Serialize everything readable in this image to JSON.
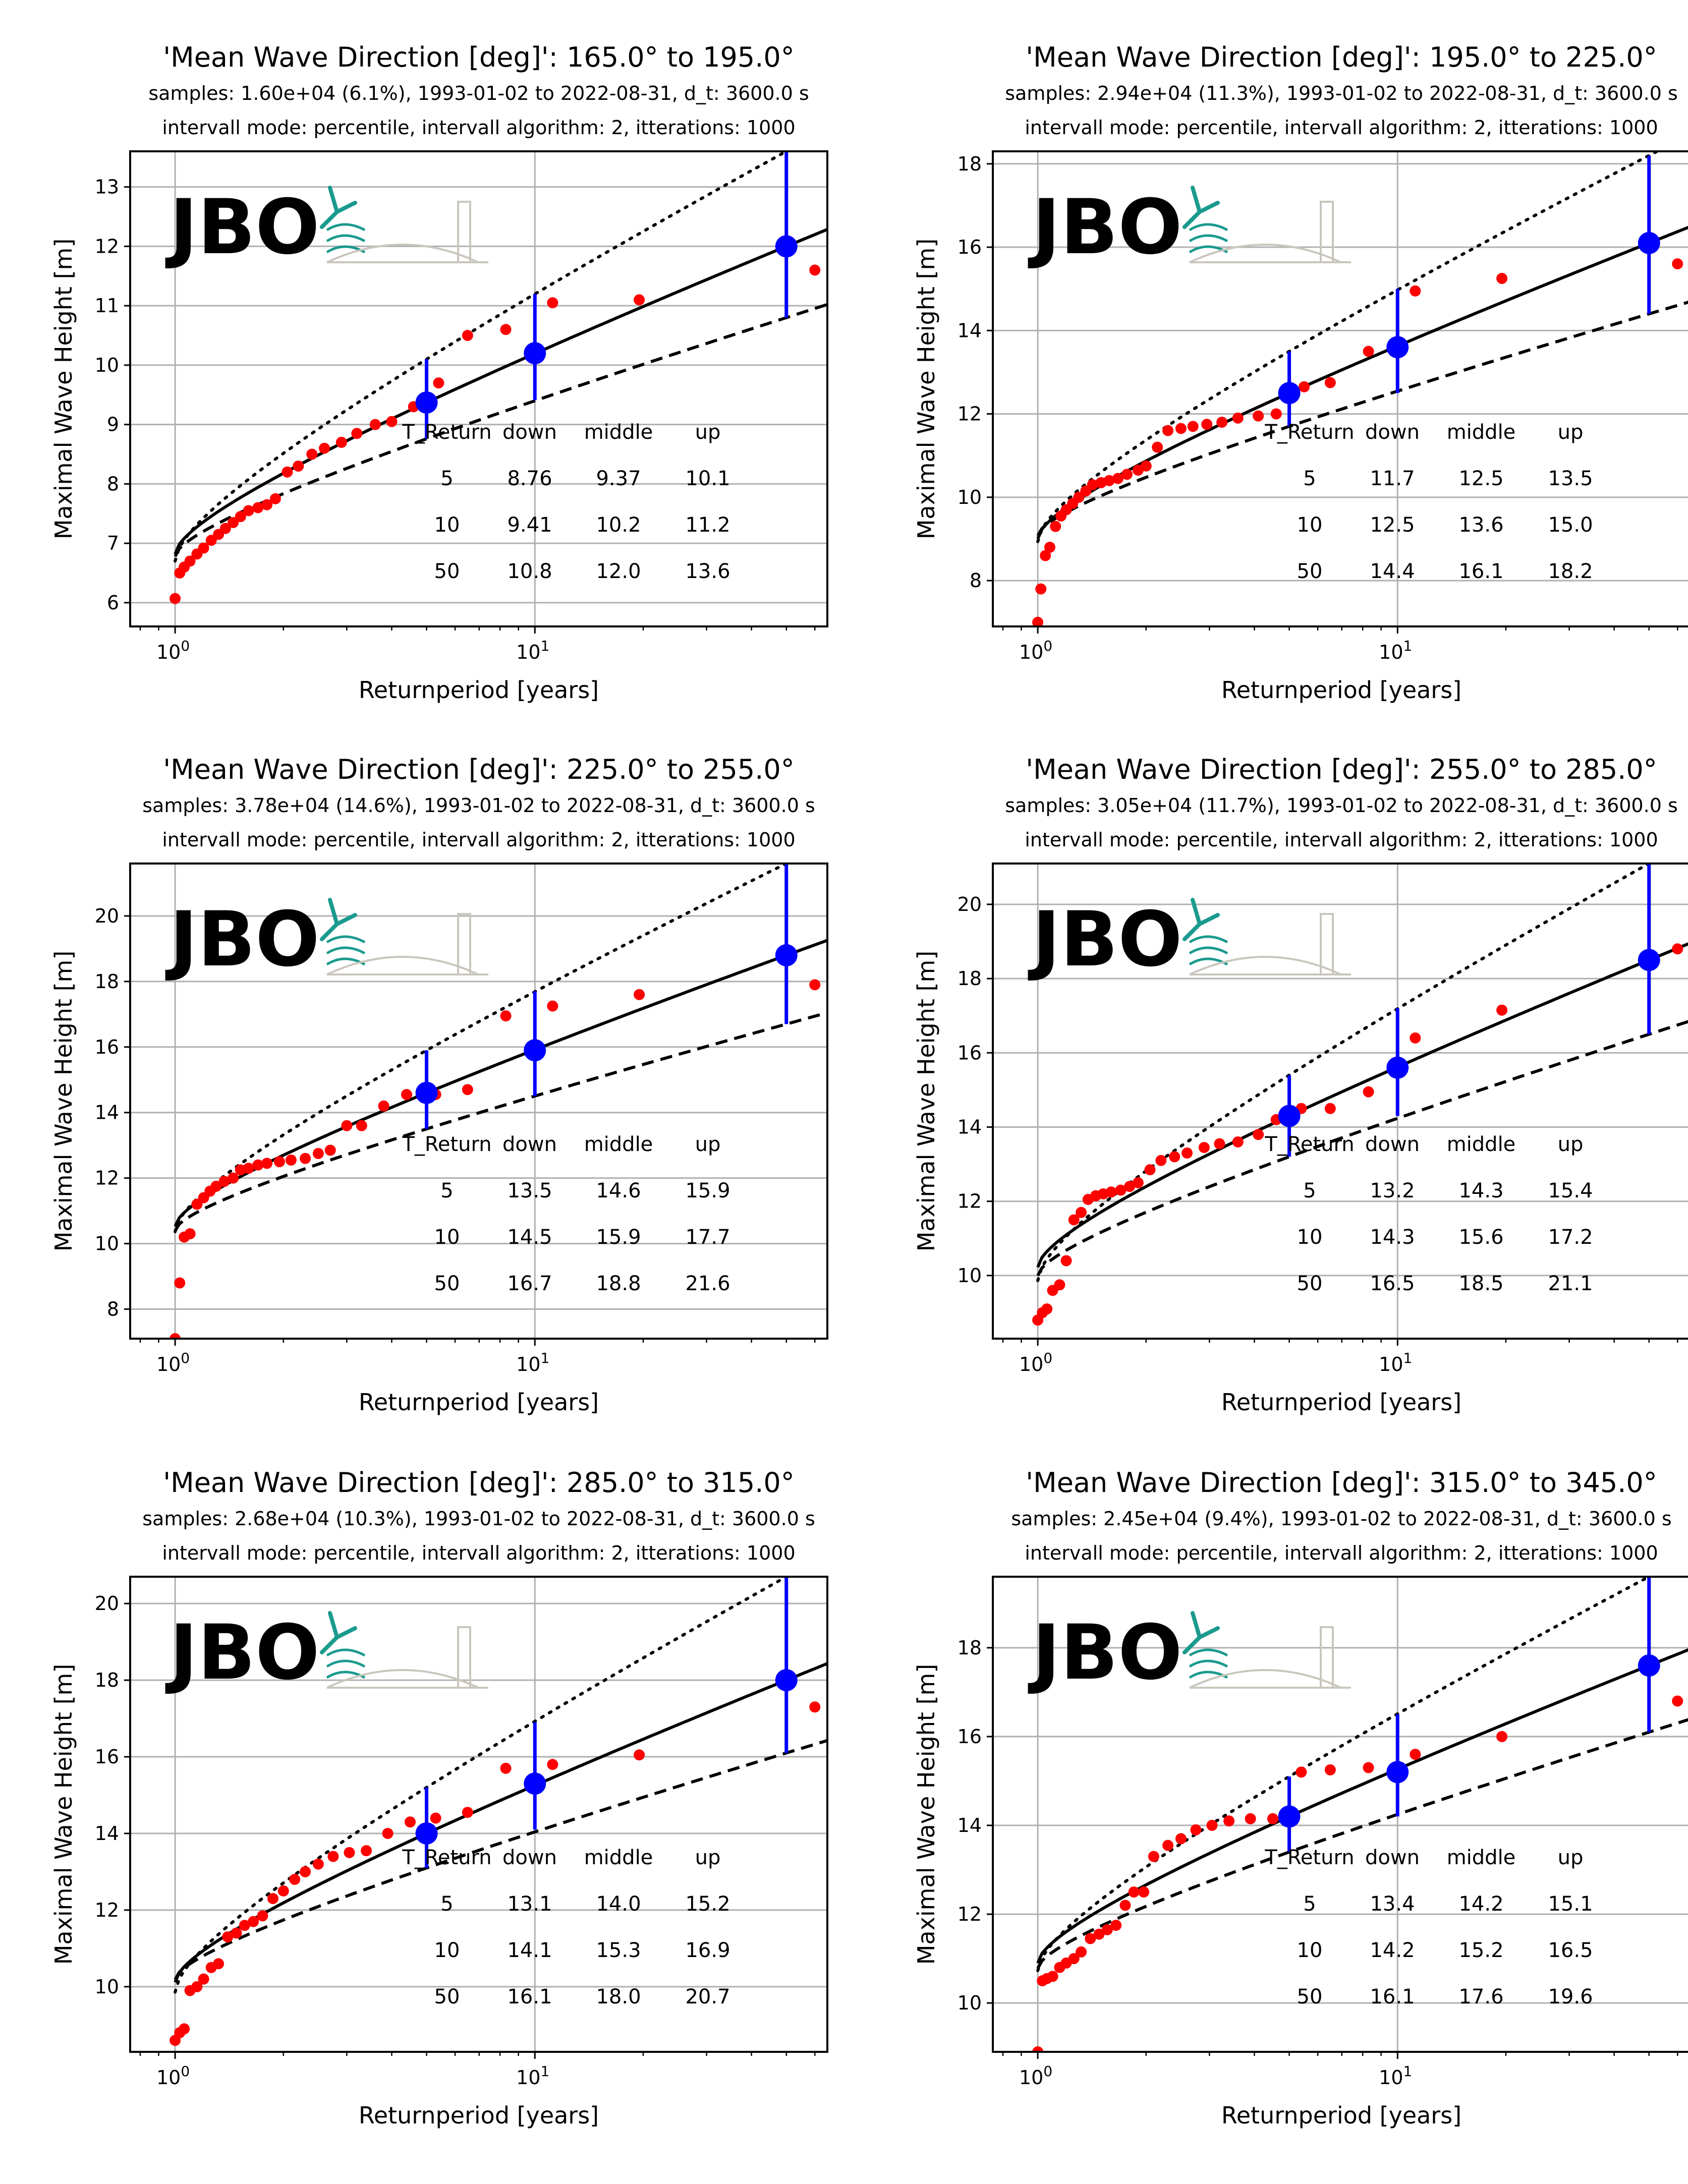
{
  "figure": {
    "xlabel": "Returnperiod [years]",
    "ylabel": "Maximal Wave Height [m]",
    "table_header": [
      "T_Return",
      "down",
      "middle",
      "up"
    ],
    "x_tick_label_base": "10",
    "x_tick_exponents": [
      "0",
      "1"
    ],
    "logo_text": "JBO",
    "colors": {
      "points": "#ff0000",
      "estimates": "#0000ff",
      "fit": "#000000",
      "grid": "#b0b0b0",
      "logo_text": "#8a857a",
      "logo_teal": "#1b9a8e"
    }
  },
  "chart_data": [
    {
      "type": "line",
      "title": "'Mean Wave Direction [deg]': 165.0° to 195.0°",
      "subtitle1": "samples: 1.60e+04 (6.1%), 1993-01-02 to 2022-08-31, d_t: 3600.0 s",
      "subtitle2": "intervall mode: percentile, intervall algorithm: 2, itterations: 1000",
      "xscale": "log",
      "xlim": [
        0.75,
        65
      ],
      "ylim": [
        5.6,
        13.6
      ],
      "yticks": [
        6,
        7,
        8,
        9,
        10,
        11,
        12,
        13
      ],
      "grid": true,
      "fit_middle": {
        "a": 6.45,
        "b": 0.43,
        "c": 0.55
      },
      "fit_down": {
        "a": 6.0,
        "b": 0.43,
        "c": 0.55
      },
      "fit_up": {
        "a": 6.85,
        "b": 0.5,
        "c": 0.6
      },
      "points": [
        [
          1.0,
          6.07
        ],
        [
          1.03,
          6.5
        ],
        [
          1.06,
          6.6
        ],
        [
          1.1,
          6.7
        ],
        [
          1.15,
          6.82
        ],
        [
          1.2,
          6.92
        ],
        [
          1.26,
          7.05
        ],
        [
          1.32,
          7.15
        ],
        [
          1.38,
          7.25
        ],
        [
          1.45,
          7.35
        ],
        [
          1.52,
          7.45
        ],
        [
          1.6,
          7.55
        ],
        [
          1.7,
          7.6
        ],
        [
          1.8,
          7.65
        ],
        [
          1.9,
          7.75
        ],
        [
          2.05,
          8.2
        ],
        [
          2.2,
          8.3
        ],
        [
          2.4,
          8.5
        ],
        [
          2.6,
          8.6
        ],
        [
          2.9,
          8.7
        ],
        [
          3.2,
          8.85
        ],
        [
          3.6,
          9.0
        ],
        [
          4.0,
          9.05
        ],
        [
          4.6,
          9.3
        ],
        [
          5.4,
          9.7
        ],
        [
          6.5,
          10.5
        ],
        [
          8.3,
          10.6
        ],
        [
          11.2,
          11.05
        ],
        [
          19.5,
          11.1
        ],
        [
          60,
          11.6
        ]
      ],
      "estimates": [
        {
          "T": 5,
          "down": 8.76,
          "middle": 9.37,
          "up": 10.1
        },
        {
          "T": 10,
          "down": 9.41,
          "middle": 10.2,
          "up": 11.2
        },
        {
          "T": 50,
          "down": 10.8,
          "middle": 12.0,
          "up": 13.6
        }
      ],
      "table": [
        [
          "5",
          "8.76",
          "9.37",
          "10.1"
        ],
        [
          "10",
          "9.41",
          "10.2",
          "11.2"
        ],
        [
          "50",
          "10.8",
          "12.0",
          "13.6"
        ]
      ]
    },
    {
      "type": "line",
      "title": "'Mean Wave Direction [deg]': 195.0° to 225.0°",
      "subtitle1": "samples: 2.94e+04 (11.3%), 1993-01-02 to 2022-08-31, d_t: 3600.0 s",
      "subtitle2": "intervall mode: percentile, intervall algorithm: 2, itterations: 1000",
      "xscale": "log",
      "xlim": [
        0.75,
        65
      ],
      "ylim": [
        6.9,
        18.3
      ],
      "yticks": [
        8,
        10,
        12,
        14,
        16,
        18
      ],
      "grid": true,
      "fit_middle": {
        "a": 8.1,
        "b": 0.9,
        "c": 0.45
      },
      "fit_down": {
        "a": 7.3,
        "b": 0.9,
        "c": 0.45
      },
      "fit_up": {
        "a": 8.6,
        "b": 1.0,
        "c": 0.5
      },
      "points": [
        [
          1.0,
          7.0
        ],
        [
          1.02,
          7.8
        ],
        [
          1.05,
          8.6
        ],
        [
          1.08,
          8.8
        ],
        [
          1.12,
          9.3
        ],
        [
          1.16,
          9.55
        ],
        [
          1.2,
          9.7
        ],
        [
          1.25,
          9.85
        ],
        [
          1.3,
          10.0
        ],
        [
          1.36,
          10.15
        ],
        [
          1.42,
          10.3
        ],
        [
          1.5,
          10.35
        ],
        [
          1.58,
          10.4
        ],
        [
          1.67,
          10.45
        ],
        [
          1.77,
          10.55
        ],
        [
          1.9,
          10.65
        ],
        [
          2.0,
          10.75
        ],
        [
          2.15,
          11.2
        ],
        [
          2.3,
          11.6
        ],
        [
          2.5,
          11.65
        ],
        [
          2.7,
          11.7
        ],
        [
          2.95,
          11.75
        ],
        [
          3.25,
          11.8
        ],
        [
          3.6,
          11.9
        ],
        [
          4.1,
          11.95
        ],
        [
          4.6,
          12.0
        ],
        [
          5.5,
          12.65
        ],
        [
          6.5,
          12.75
        ],
        [
          8.3,
          13.5
        ],
        [
          11.2,
          14.95
        ],
        [
          19.5,
          15.25
        ],
        [
          60,
          15.6
        ]
      ],
      "estimates": [
        {
          "T": 5,
          "down": 11.7,
          "middle": 12.5,
          "up": 13.5
        },
        {
          "T": 10,
          "down": 12.5,
          "middle": 13.6,
          "up": 15.0
        },
        {
          "T": 50,
          "down": 14.4,
          "middle": 16.1,
          "up": 18.2
        }
      ],
      "table": [
        [
          "5",
          "11.7",
          "12.5",
          "13.5"
        ],
        [
          "10",
          "12.5",
          "13.6",
          "15.0"
        ],
        [
          "50",
          "14.4",
          "16.1",
          "18.2"
        ]
      ]
    },
    {
      "type": "line",
      "title": "'Mean Wave Direction [deg]': 225.0° to 255.0°",
      "subtitle1": "samples: 3.78e+04 (14.6%), 1993-01-02 to 2022-08-31, d_t: 3600.0 s",
      "subtitle2": "intervall mode: percentile, intervall algorithm: 2, itterations: 1000",
      "xscale": "log",
      "xlim": [
        0.75,
        65
      ],
      "ylim": [
        7.1,
        21.6
      ],
      "yticks": [
        8,
        10,
        12,
        14,
        16,
        18,
        20
      ],
      "grid": true,
      "fit_middle": {
        "a": 9.4,
        "b": 1.2,
        "c": 0.45
      },
      "fit_down": {
        "a": 8.5,
        "b": 1.15,
        "c": 0.45
      },
      "fit_up": {
        "a": 10.3,
        "b": 1.3,
        "c": 0.5
      },
      "points": [
        [
          1.0,
          7.1
        ],
        [
          1.03,
          8.8
        ],
        [
          1.06,
          10.2
        ],
        [
          1.1,
          10.3
        ],
        [
          1.15,
          11.2
        ],
        [
          1.2,
          11.4
        ],
        [
          1.25,
          11.6
        ],
        [
          1.3,
          11.75
        ],
        [
          1.37,
          11.9
        ],
        [
          1.45,
          12.0
        ],
        [
          1.52,
          12.25
        ],
        [
          1.6,
          12.3
        ],
        [
          1.7,
          12.4
        ],
        [
          1.8,
          12.45
        ],
        [
          1.95,
          12.5
        ],
        [
          2.1,
          12.55
        ],
        [
          2.3,
          12.6
        ],
        [
          2.5,
          12.75
        ],
        [
          2.7,
          12.85
        ],
        [
          3.0,
          13.6
        ],
        [
          3.3,
          13.6
        ],
        [
          3.8,
          14.2
        ],
        [
          4.4,
          14.55
        ],
        [
          5.3,
          14.55
        ],
        [
          6.5,
          14.7
        ],
        [
          8.3,
          16.95
        ],
        [
          11.2,
          17.25
        ],
        [
          19.5,
          17.6
        ],
        [
          60,
          17.9
        ]
      ],
      "estimates": [
        {
          "T": 5,
          "down": 13.5,
          "middle": 14.6,
          "up": 15.9
        },
        {
          "T": 10,
          "down": 14.5,
          "middle": 15.9,
          "up": 17.7
        },
        {
          "T": 50,
          "down": 16.7,
          "middle": 18.8,
          "up": 21.6
        }
      ],
      "table": [
        [
          "5",
          "13.5",
          "14.6",
          "15.9"
        ],
        [
          "10",
          "14.5",
          "15.9",
          "17.7"
        ],
        [
          "50",
          "16.7",
          "18.8",
          "21.6"
        ]
      ]
    },
    {
      "type": "line",
      "title": "'Mean Wave Direction [deg]': 255.0° to 285.0°",
      "subtitle1": "samples: 3.05e+04 (11.7%), 1993-01-02 to 2022-08-31, d_t: 3600.0 s",
      "subtitle2": "intervall mode: percentile, intervall algorithm: 2, itterations: 1000",
      "xscale": "log",
      "xlim": [
        0.75,
        65
      ],
      "ylim": [
        8.3,
        21.1
      ],
      "yticks": [
        10,
        12,
        14,
        16,
        18,
        20
      ],
      "grid": true,
      "fit_middle": {
        "a": 8.8,
        "b": 1.28,
        "c": 0.45
      },
      "fit_down": {
        "a": 8.3,
        "b": 1.05,
        "c": 0.45
      },
      "fit_up": {
        "a": 9.6,
        "b": 1.35,
        "c": 0.5
      },
      "points": [
        [
          1.0,
          8.8
        ],
        [
          1.03,
          9.0
        ],
        [
          1.06,
          9.1
        ],
        [
          1.1,
          9.6
        ],
        [
          1.15,
          9.75
        ],
        [
          1.2,
          10.4
        ],
        [
          1.26,
          11.5
        ],
        [
          1.32,
          11.7
        ],
        [
          1.38,
          12.05
        ],
        [
          1.45,
          12.15
        ],
        [
          1.52,
          12.2
        ],
        [
          1.6,
          12.25
        ],
        [
          1.7,
          12.3
        ],
        [
          1.8,
          12.4
        ],
        [
          1.9,
          12.5
        ],
        [
          2.05,
          12.85
        ],
        [
          2.2,
          13.1
        ],
        [
          2.4,
          13.2
        ],
        [
          2.6,
          13.3
        ],
        [
          2.9,
          13.45
        ],
        [
          3.2,
          13.55
        ],
        [
          3.6,
          13.6
        ],
        [
          4.1,
          13.8
        ],
        [
          4.6,
          14.2
        ],
        [
          5.4,
          14.5
        ],
        [
          6.5,
          14.5
        ],
        [
          8.3,
          14.95
        ],
        [
          11.2,
          16.4
        ],
        [
          19.5,
          17.15
        ],
        [
          60,
          18.8
        ]
      ],
      "estimates": [
        {
          "T": 5,
          "down": 13.2,
          "middle": 14.3,
          "up": 15.4
        },
        {
          "T": 10,
          "down": 14.3,
          "middle": 15.6,
          "up": 17.2
        },
        {
          "T": 50,
          "down": 16.5,
          "middle": 18.5,
          "up": 21.1
        }
      ],
      "table": [
        [
          "5",
          "13.2",
          "14.3",
          "15.4"
        ],
        [
          "10",
          "14.3",
          "15.6",
          "17.2"
        ],
        [
          "50",
          "16.5",
          "18.5",
          "21.1"
        ]
      ]
    },
    {
      "type": "line",
      "title": "'Mean Wave Direction [deg]': 285.0° to 315.0°",
      "subtitle1": "samples: 2.68e+04 (10.3%), 1993-01-02 to 2022-08-31, d_t: 3600.0 s",
      "subtitle2": "intervall mode: percentile, intervall algorithm: 2, itterations: 1000",
      "xscale": "log",
      "xlim": [
        0.75,
        65
      ],
      "ylim": [
        8.3,
        20.7
      ],
      "yticks": [
        10,
        12,
        14,
        16,
        18,
        20
      ],
      "grid": true,
      "fit_middle": {
        "a": 9.2,
        "b": 1.25,
        "c": 0.5
      },
      "fit_down": {
        "a": 8.5,
        "b": 1.15,
        "c": 0.5
      },
      "fit_up": {
        "a": 9.8,
        "b": 1.45,
        "c": 0.55
      },
      "points": [
        [
          1.0,
          8.6
        ],
        [
          1.03,
          8.8
        ],
        [
          1.06,
          8.9
        ],
        [
          1.1,
          9.9
        ],
        [
          1.15,
          10.0
        ],
        [
          1.2,
          10.2
        ],
        [
          1.26,
          10.5
        ],
        [
          1.32,
          10.6
        ],
        [
          1.4,
          11.3
        ],
        [
          1.48,
          11.4
        ],
        [
          1.56,
          11.6
        ],
        [
          1.65,
          11.7
        ],
        [
          1.75,
          11.85
        ],
        [
          1.87,
          12.3
        ],
        [
          2.0,
          12.5
        ],
        [
          2.15,
          12.8
        ],
        [
          2.3,
          13.0
        ],
        [
          2.5,
          13.2
        ],
        [
          2.75,
          13.4
        ],
        [
          3.05,
          13.5
        ],
        [
          3.4,
          13.55
        ],
        [
          3.9,
          14.0
        ],
        [
          4.5,
          14.3
        ],
        [
          5.3,
          14.4
        ],
        [
          6.5,
          14.55
        ],
        [
          8.3,
          15.7
        ],
        [
          11.2,
          15.8
        ],
        [
          19.5,
          16.05
        ],
        [
          60,
          17.3
        ]
      ],
      "estimates": [
        {
          "T": 5,
          "down": 13.1,
          "middle": 14.0,
          "up": 15.2
        },
        {
          "T": 10,
          "down": 14.1,
          "middle": 15.3,
          "up": 16.9
        },
        {
          "T": 50,
          "down": 16.1,
          "middle": 18.0,
          "up": 20.7
        }
      ],
      "table": [
        [
          "5",
          "13.1",
          "14.0",
          "15.2"
        ],
        [
          "10",
          "14.1",
          "15.3",
          "16.9"
        ],
        [
          "50",
          "16.1",
          "18.0",
          "20.7"
        ]
      ]
    },
    {
      "type": "line",
      "title": "'Mean Wave Direction [deg]': 315.0° to 345.0°",
      "subtitle1": "samples: 2.45e+04 (9.4%), 1993-01-02 to 2022-08-31, d_t: 3600.0 s",
      "subtitle2": "intervall mode: percentile, intervall algorithm: 2, itterations: 1000",
      "xscale": "log",
      "xlim": [
        0.75,
        65
      ],
      "ylim": [
        8.9,
        19.6
      ],
      "yticks": [
        10,
        12,
        14,
        16,
        18
      ],
      "grid": true,
      "fit_middle": {
        "a": 10.1,
        "b": 0.95,
        "c": 0.5
      },
      "fit_down": {
        "a": 9.8,
        "b": 0.83,
        "c": 0.5
      },
      "fit_up": {
        "a": 10.6,
        "b": 1.1,
        "c": 0.5
      },
      "points": [
        [
          1.0,
          8.9
        ],
        [
          1.03,
          10.5
        ],
        [
          1.06,
          10.55
        ],
        [
          1.1,
          10.6
        ],
        [
          1.15,
          10.8
        ],
        [
          1.2,
          10.9
        ],
        [
          1.26,
          11.0
        ],
        [
          1.32,
          11.15
        ],
        [
          1.4,
          11.45
        ],
        [
          1.48,
          11.55
        ],
        [
          1.56,
          11.65
        ],
        [
          1.65,
          11.75
        ],
        [
          1.75,
          12.2
        ],
        [
          1.85,
          12.5
        ],
        [
          1.97,
          12.5
        ],
        [
          2.1,
          13.3
        ],
        [
          2.3,
          13.55
        ],
        [
          2.5,
          13.7
        ],
        [
          2.75,
          13.9
        ],
        [
          3.05,
          14.0
        ],
        [
          3.4,
          14.1
        ],
        [
          3.9,
          14.15
        ],
        [
          4.5,
          14.15
        ],
        [
          5.4,
          15.2
        ],
        [
          6.5,
          15.25
        ],
        [
          8.3,
          15.3
        ],
        [
          11.2,
          15.6
        ],
        [
          19.5,
          16.0
        ],
        [
          60,
          16.8
        ]
      ],
      "estimates": [
        {
          "T": 5,
          "down": 13.4,
          "middle": 14.2,
          "up": 15.1
        },
        {
          "T": 10,
          "down": 14.2,
          "middle": 15.2,
          "up": 16.5
        },
        {
          "T": 50,
          "down": 16.1,
          "middle": 17.6,
          "up": 19.6
        }
      ],
      "table": [
        [
          "5",
          "13.4",
          "14.2",
          "15.1"
        ],
        [
          "10",
          "14.2",
          "15.2",
          "16.5"
        ],
        [
          "50",
          "16.1",
          "17.6",
          "19.6"
        ]
      ]
    }
  ]
}
